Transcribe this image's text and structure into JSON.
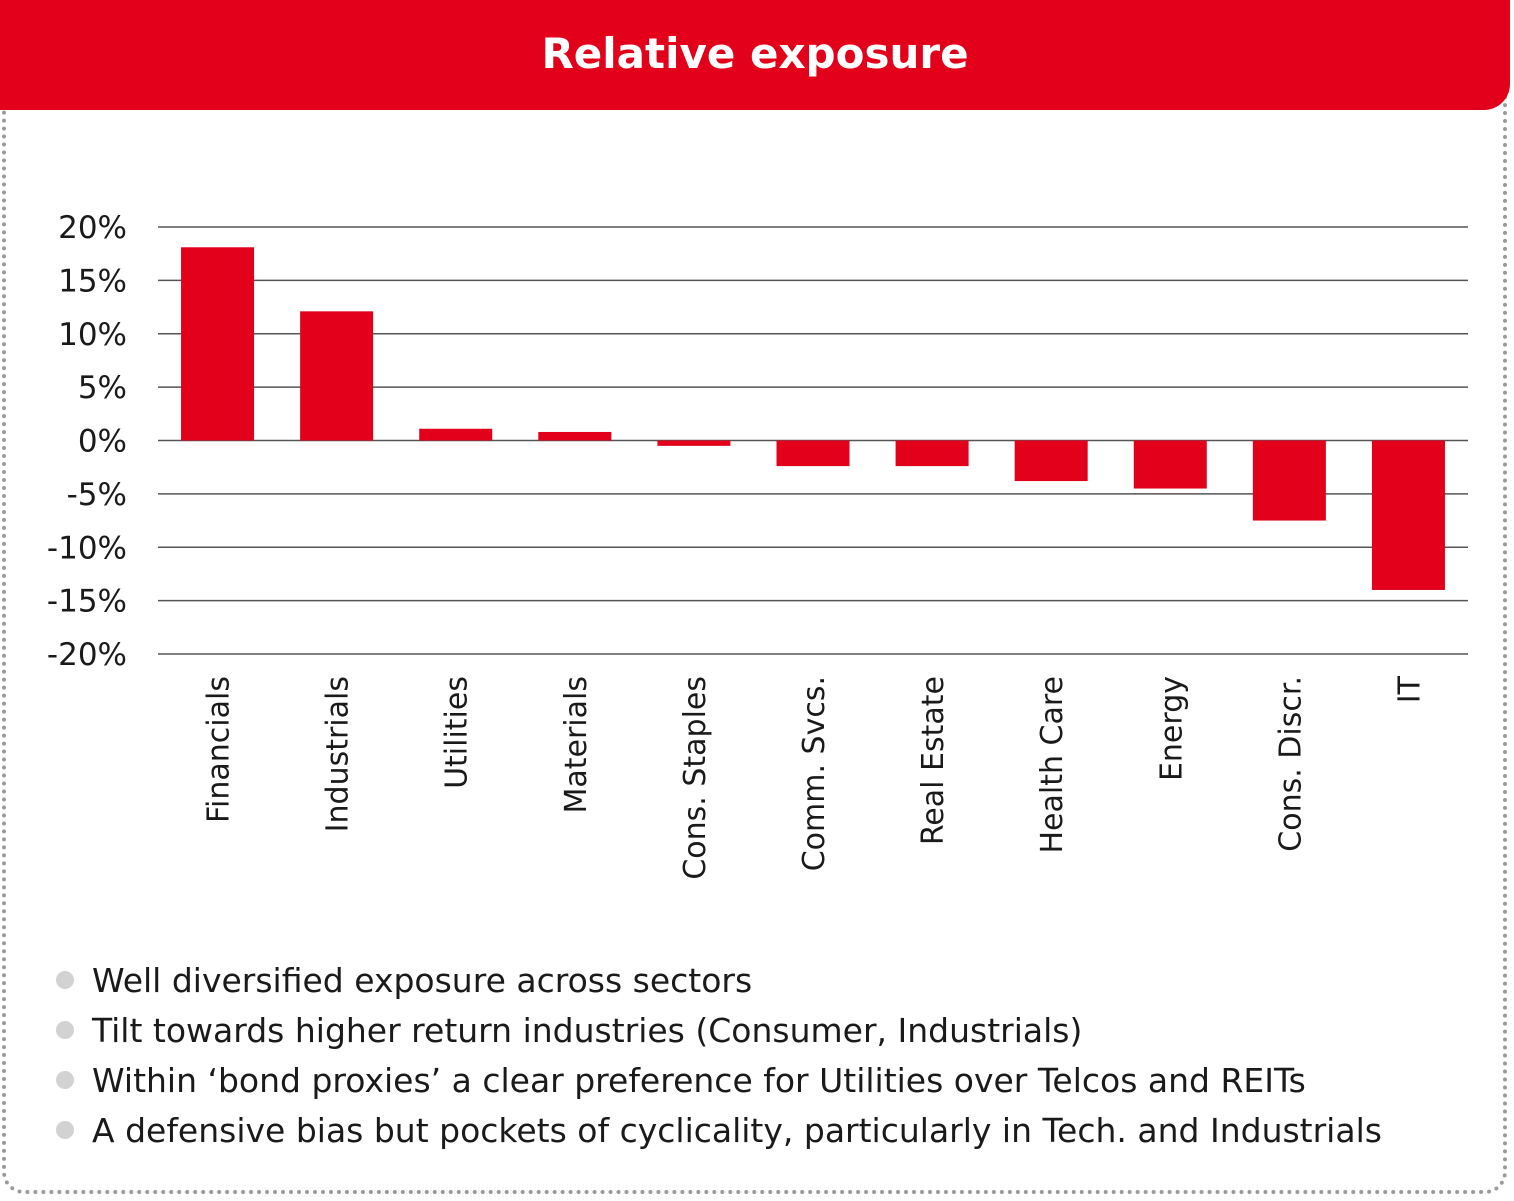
{
  "header": {
    "title": "Relative exposure"
  },
  "colors": {
    "accent": "#e2001a",
    "gridline": "#555555",
    "bullet": "#d2d2d2"
  },
  "chart_data": {
    "type": "bar",
    "title": "",
    "xlabel": "",
    "ylabel": "",
    "ylim": [
      -20,
      20
    ],
    "yticks": [
      20,
      15,
      10,
      5,
      0,
      -5,
      -10,
      -15,
      -20
    ],
    "ytick_labels": [
      "20%",
      "15%",
      "10%",
      "5%",
      "0%",
      "-5%",
      "-10%",
      "-15%",
      "-20%"
    ],
    "grid": true,
    "legend": "none",
    "categories": [
      "Financials",
      "Industrials",
      "Utilities",
      "Materials",
      "Cons. Staples",
      "Comm. Svcs.",
      "Real Estate",
      "Health Care",
      "Energy",
      "Cons. Discr.",
      "IT"
    ],
    "values": [
      18.1,
      12.1,
      1.1,
      0.8,
      -0.5,
      -2.4,
      -2.4,
      -3.8,
      -4.5,
      -7.5,
      -14.0
    ]
  },
  "bullets": [
    "Well diversified exposure across sectors",
    "Tilt towards higher return industries (Consumer, Industrials)",
    "Within ‘bond proxies’ a clear preference for Utilities over Telcos and REITs",
    "A defensive bias but pockets of cyclicality, particularly in Tech. and Industrials"
  ]
}
